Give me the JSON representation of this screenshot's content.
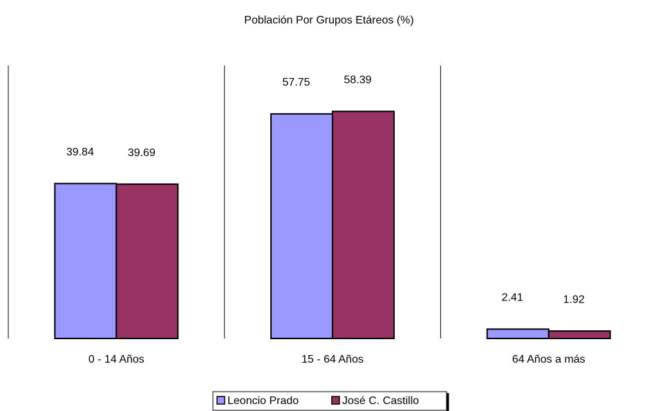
{
  "chart_data": {
    "type": "bar",
    "title": "Población Por Grupos Etáreos (%)",
    "categories": [
      "0 - 14 Años",
      "15 - 64 Años",
      "64 Años a más"
    ],
    "series": [
      {
        "name": "Leoncio Prado",
        "color": "#9999ff",
        "values": [
          39.84,
          57.75,
          2.41
        ]
      },
      {
        "name": "José C. Castillo",
        "color": "#993366",
        "values": [
          39.69,
          58.39,
          1.92
        ]
      }
    ],
    "legend": "bottom"
  }
}
